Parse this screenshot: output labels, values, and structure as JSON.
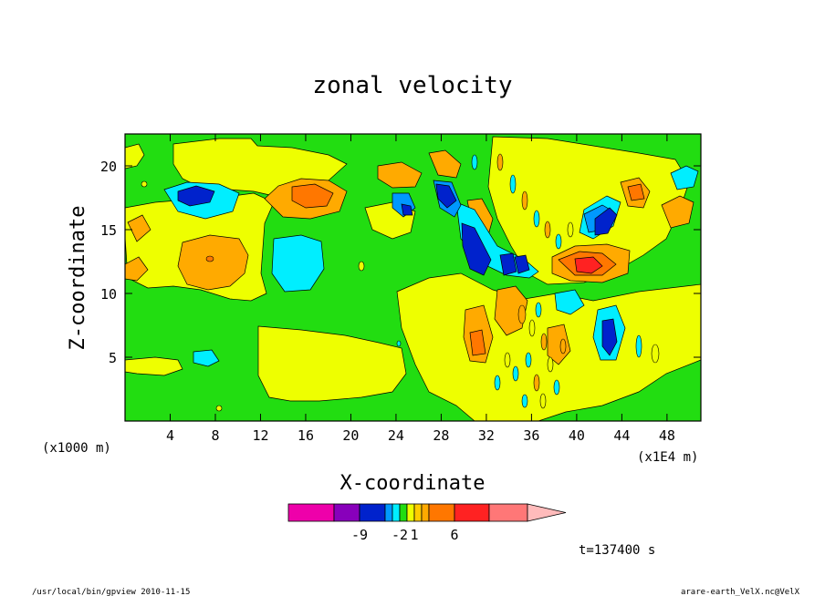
{
  "chart_data": {
    "type": "heatmap",
    "title": "zonal velocity",
    "xlabel": "X-coordinate",
    "ylabel": "Z-coordinate",
    "x_left_unit": "(x1000 m)",
    "x_right_unit": "(x1E4 m)",
    "xlim": [
      0,
      51
    ],
    "ylim": [
      0,
      22.5
    ],
    "x_ticks": [
      4,
      8,
      12,
      16,
      20,
      24,
      28,
      32,
      36,
      40,
      44,
      48
    ],
    "y_ticks": [
      5,
      10,
      15,
      20
    ],
    "colorbar": {
      "colors": [
        "#ee00aa",
        "#8800bb",
        "#0022cc",
        "#0099ff",
        "#00eeff",
        "#22dd11",
        "#eeff00",
        "#ffcc00",
        "#ffaa00",
        "#ff7700",
        "#ff2222",
        "#ff7777",
        "#ffbbbb"
      ],
      "tick_labels": [
        "-9",
        "-2",
        "1",
        "6"
      ],
      "tick_levels": [
        -9,
        -2,
        1,
        6
      ]
    },
    "time_label": "t=137400 s",
    "footer_left": "/usr/local/bin/gpview  2010-11-15",
    "footer_right": "arare-earth_VelX.nc@VelX"
  }
}
